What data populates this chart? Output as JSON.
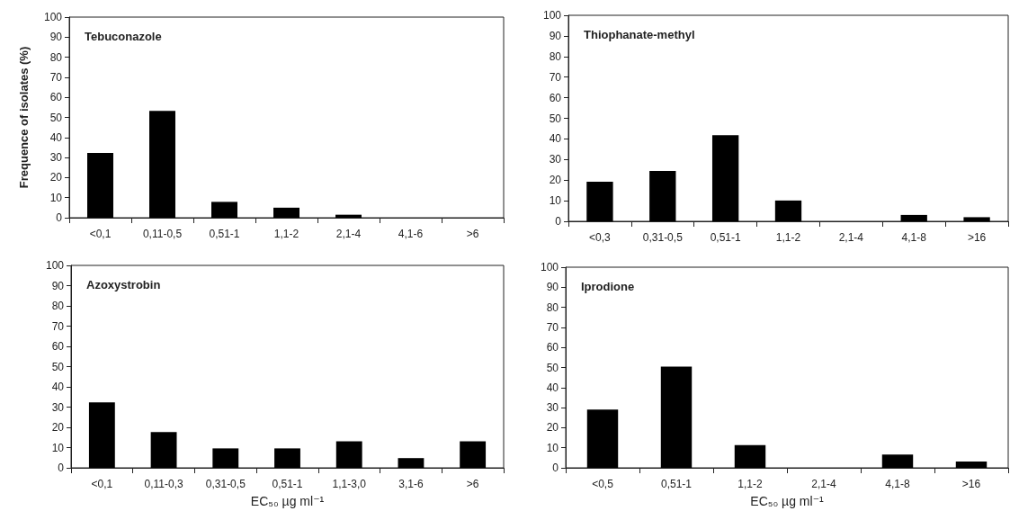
{
  "chart_data": [
    {
      "type": "bar",
      "title": "Tebuconazole",
      "ylabel": "Frequence of isolates (%)",
      "categories": [
        "<0,1",
        "0,11-0,5",
        "0,51-1",
        "1,1-2",
        "2,1-4",
        "4,1-6",
        ">6"
      ],
      "values": [
        32.3,
        53.2,
        7.9,
        5.0,
        1.5,
        0,
        0
      ],
      "color": "#000000",
      "ylim": [
        0,
        100
      ],
      "yticks": [
        0,
        10,
        20,
        30,
        40,
        50,
        60,
        70,
        80,
        90,
        100
      ]
    },
    {
      "type": "bar",
      "title": "Thiophanate-methyl",
      "categories": [
        "<0,3",
        "0,31-0,5",
        "0,51-1",
        "1,1-2",
        "2,1-4",
        "4,1-8",
        ">16"
      ],
      "values": [
        19.2,
        24.5,
        41.8,
        10.1,
        0,
        3.1,
        2.0
      ],
      "color": "#000000",
      "ylim": [
        0,
        100
      ],
      "yticks": [
        0,
        10,
        20,
        30,
        40,
        50,
        60,
        70,
        80,
        90,
        100
      ]
    },
    {
      "type": "bar",
      "title": "Azoxystrobin",
      "xlabel": "EC₅₀ µg ml⁻¹",
      "categories": [
        "<0,1",
        "0,11-0,3",
        "0,31-0,5",
        "0,51-1",
        "1,1-3,0",
        "3,1-6",
        ">6"
      ],
      "values": [
        32.3,
        17.7,
        9.6,
        9.6,
        13.1,
        4.8,
        13.1
      ],
      "color": "#000000",
      "ylim": [
        0,
        100
      ],
      "yticks": [
        0,
        10,
        20,
        30,
        40,
        50,
        60,
        70,
        80,
        90,
        100
      ]
    },
    {
      "type": "bar",
      "title": "Iprodione",
      "xlabel": "EC₅₀ µg ml⁻¹",
      "categories": [
        "<0,5",
        "0,51-1",
        "1,1-2",
        "2,1-4",
        "4,1-8",
        ">16"
      ],
      "values": [
        29.0,
        50.4,
        11.3,
        0,
        6.6,
        3.1
      ],
      "color": "#000000",
      "ylim": [
        0,
        100
      ],
      "yticks": [
        0,
        10,
        20,
        30,
        40,
        50,
        60,
        70,
        80,
        90,
        100
      ]
    }
  ]
}
